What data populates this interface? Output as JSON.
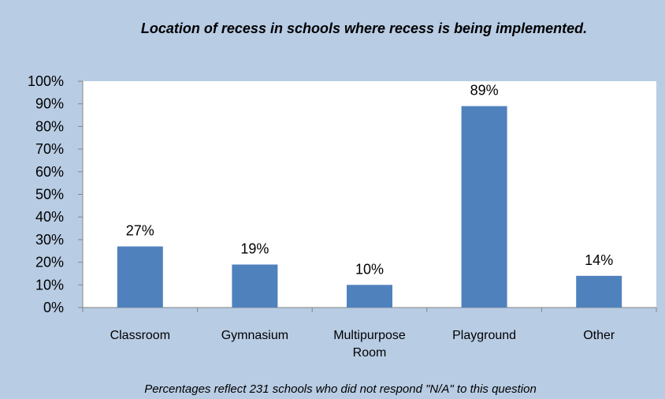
{
  "chart_data": {
    "type": "bar",
    "title": "Location of recess in schools where recess is being implemented.",
    "footnote": "Percentages reflect 231 schools who did not respond \"N/A\" to this question",
    "categories": [
      [
        "Classroom"
      ],
      [
        "Gymnasium"
      ],
      [
        "Multipurpose",
        "Room"
      ],
      [
        "Playground"
      ],
      [
        "Other"
      ]
    ],
    "values": [
      27,
      19,
      10,
      89,
      14
    ],
    "data_labels": [
      "27%",
      "19%",
      "10%",
      "89%",
      "14%"
    ],
    "ylim": [
      0,
      100
    ],
    "yticks": [
      0,
      10,
      20,
      30,
      40,
      50,
      60,
      70,
      80,
      90,
      100
    ],
    "ytick_suffix": "%",
    "xlabel": "",
    "ylabel": "",
    "grid": false,
    "legend": "none",
    "bar_color": "#4f81bd",
    "plot_background": "#ffffff",
    "figure_background": "#b8cce4"
  }
}
